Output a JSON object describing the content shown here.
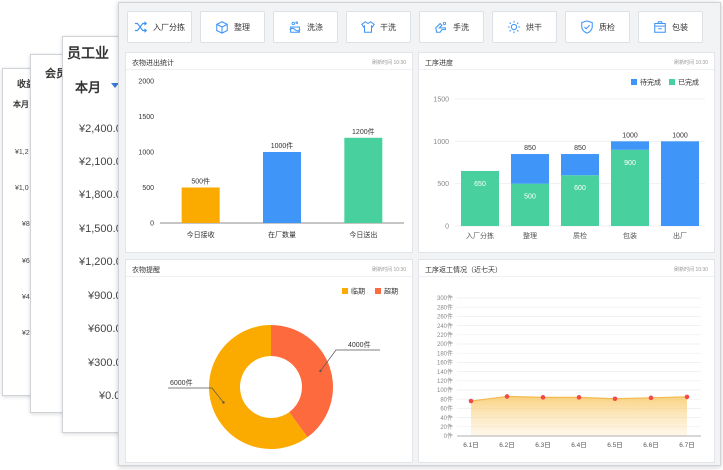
{
  "background_sheets": {
    "sheet1": {
      "title": "收益",
      "period": "本月",
      "ticks": [
        "¥1,2",
        "¥1,0",
        "¥8",
        "¥6",
        "¥4",
        "¥2"
      ]
    },
    "sheet2": {
      "title": "会员"
    },
    "sheet3": {
      "title": "员工业",
      "period": "本月",
      "ticks": [
        "¥2,400.0",
        "¥2,100.0",
        "¥1,800.0",
        "¥1,500.0",
        "¥1,200.0",
        "¥900.0",
        "¥600.0",
        "¥300.0",
        "¥0.0"
      ]
    }
  },
  "toolbar": [
    {
      "label": "入厂分拣",
      "icon": "shuffle-icon"
    },
    {
      "label": "整理",
      "icon": "package-icon"
    },
    {
      "label": "洗涤",
      "icon": "washing-icon"
    },
    {
      "label": "干洗",
      "icon": "shirt-icon"
    },
    {
      "label": "手洗",
      "icon": "hand-wash-icon"
    },
    {
      "label": "烘干",
      "icon": "dryer-sun-icon"
    },
    {
      "label": "质检",
      "icon": "inspect-shield-icon"
    },
    {
      "label": "包装",
      "icon": "box-icon"
    }
  ],
  "panels": {
    "inout": {
      "title": "衣物进出统计",
      "time": "刷新时间 10:30"
    },
    "progress": {
      "title": "工序进度",
      "time": "刷新时间 10:30"
    },
    "reminder": {
      "title": "衣物提醒",
      "time": "刷新时间 10:30"
    },
    "rework": {
      "title": "工序返工情况（近七天）",
      "time": "刷新时间 10:30"
    }
  },
  "colors": {
    "orange": "#fbaa00",
    "blue": "#3f95f8",
    "green": "#48d19f",
    "red": "#fd6a3d",
    "line": "#f3bb4b"
  },
  "chart_data": [
    {
      "type": "bar",
      "title": "衣物进出统计",
      "categories": [
        "今日接收",
        "在厂数量",
        "今日送出"
      ],
      "values": [
        500,
        1000,
        1200
      ],
      "labels": [
        "500件",
        "1000件",
        "1200件"
      ],
      "yticks": [
        "0",
        "500",
        "1000",
        "1500",
        "2000"
      ],
      "ylim": [
        0,
        2000
      ]
    },
    {
      "type": "bar",
      "title": "工序进度",
      "stacked": true,
      "categories": [
        "入厂分拣",
        "整理",
        "质检",
        "包装",
        "出厂"
      ],
      "series": [
        {
          "name": "待完成",
          "values": [
            0,
            350,
            250,
            100,
            1000
          ]
        },
        {
          "name": "已完成",
          "values": [
            650,
            500,
            600,
            900,
            0
          ]
        }
      ],
      "totals": [
        "",
        "850",
        "850",
        "1000",
        "1000"
      ],
      "inner_labels": [
        "650",
        "500",
        "600",
        "900",
        ""
      ],
      "yticks": [
        "0",
        "500",
        "1000",
        "1500"
      ],
      "ylim": [
        0,
        1500
      ],
      "legend": [
        "待完成",
        "已完成"
      ]
    },
    {
      "type": "pie",
      "title": "衣物提醒",
      "categories": [
        "临期",
        "超期"
      ],
      "values": [
        6000,
        4000
      ],
      "labels": [
        "6000件",
        "4000件"
      ],
      "legend": [
        "临期",
        "超期"
      ]
    },
    {
      "type": "area",
      "title": "工序返工情况（近七天）",
      "categories": [
        "6.1日",
        "6.2日",
        "6.3日",
        "6.4日",
        "6.5日",
        "6.6日",
        "6.7日"
      ],
      "values": [
        76,
        86,
        84,
        84,
        81,
        83,
        85
      ],
      "yticks": [
        "0件",
        "20件",
        "40件",
        "60件",
        "80件",
        "100件",
        "120件",
        "140件",
        "160件",
        "180件",
        "200件",
        "220件",
        "240件",
        "260件",
        "280件",
        "300件"
      ],
      "ylim": [
        0,
        300
      ]
    }
  ]
}
